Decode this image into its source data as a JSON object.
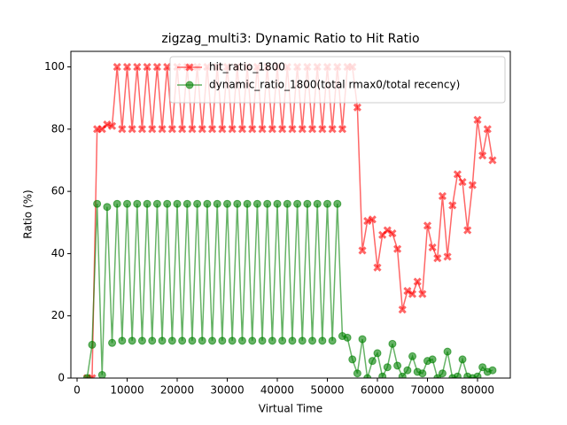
{
  "chart_data": {
    "type": "line",
    "title": "zigzag_multi3: Dynamic Ratio to Hit Ratio",
    "x_label": "Virtual Time",
    "y_label": "Ratio (%)",
    "x": [
      2000,
      3000,
      4000,
      5000,
      6000,
      7000,
      8000,
      9000,
      10000,
      11000,
      12000,
      13000,
      14000,
      15000,
      16000,
      17000,
      18000,
      19000,
      20000,
      21000,
      22000,
      23000,
      24000,
      25000,
      26000,
      27000,
      28000,
      29000,
      30000,
      31000,
      32000,
      33000,
      34000,
      35000,
      36000,
      37000,
      38000,
      39000,
      40000,
      41000,
      42000,
      43000,
      44000,
      45000,
      46000,
      47000,
      48000,
      49000,
      50000,
      51000,
      52000,
      53000,
      54000,
      55000,
      56000,
      57000,
      58000,
      59000,
      60000,
      61000,
      62000,
      63000,
      64000,
      65000,
      66000,
      67000,
      68000,
      69000,
      70000,
      71000,
      72000,
      73000,
      74000,
      75000,
      76000,
      77000,
      78000,
      79000,
      80000,
      81000,
      82000,
      83000
    ],
    "series": [
      {
        "name": "hit_ratio_1800",
        "color": "#ff0000",
        "marker": "X",
        "values": [
          0,
          0,
          80,
          80,
          81.5,
          81,
          100,
          80,
          100,
          80,
          100,
          80,
          100,
          80,
          100,
          80,
          100,
          80,
          100,
          80,
          100,
          80,
          100,
          80,
          100,
          80,
          100,
          80,
          100,
          80,
          100,
          80,
          100,
          80,
          100,
          80,
          100,
          80,
          100,
          80,
          100,
          80,
          100,
          80,
          100,
          80,
          100,
          80,
          100,
          80,
          100,
          80,
          100,
          100,
          87,
          41,
          50.5,
          51,
          35.5,
          46,
          47.5,
          46.5,
          41.5,
          22,
          28,
          27,
          31,
          27,
          49,
          42,
          38.5,
          58.5,
          39,
          55.5,
          65.5,
          63,
          47.5,
          62,
          83,
          71.5,
          80,
          70
        ]
      },
      {
        "name": "dynamic_ratio_1800(total rmax0/total recency)",
        "color": "#008000",
        "marker": "o",
        "values": [
          0,
          10.7,
          56,
          1,
          55,
          11.3,
          56,
          12,
          56,
          12,
          56,
          12,
          56,
          12,
          56,
          12,
          56,
          12,
          56,
          12,
          56,
          12,
          56,
          12,
          56,
          12,
          56,
          12,
          56,
          12,
          56,
          12,
          56,
          12,
          56,
          12,
          56,
          12,
          56,
          12,
          56,
          12,
          56,
          12,
          56,
          12,
          56,
          12,
          56,
          12,
          56,
          13.5,
          13,
          6,
          1.5,
          12.5,
          0,
          5.5,
          8,
          0.5,
          3.5,
          11,
          4,
          0.5,
          2.5,
          7,
          2,
          1.5,
          5.5,
          6,
          0,
          1.5,
          8.5,
          0,
          0.5,
          6,
          0.5,
          0,
          0.5,
          3.5,
          2,
          2.5
        ]
      }
    ],
    "xlim": [
      -1240,
      86550
    ],
    "ylim": [
      0,
      105
    ],
    "xticks": [
      0,
      10000,
      20000,
      30000,
      40000,
      50000,
      60000,
      70000,
      80000
    ],
    "yticks": [
      0,
      20,
      40,
      60,
      80,
      100
    ],
    "legend": "upper right",
    "grid": false
  }
}
